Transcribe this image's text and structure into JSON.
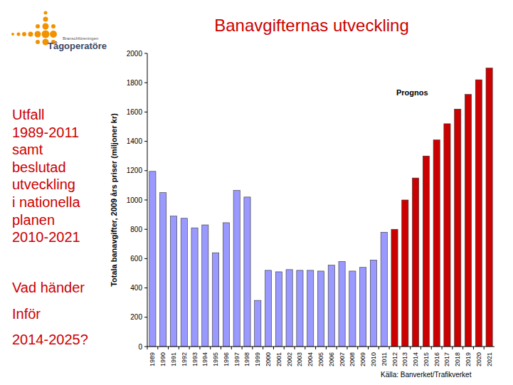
{
  "chart_data": {
    "type": "bar",
    "title": "Banavgifternas utveckling",
    "y_label": "Totala banavgifter, 2009 års priser (miljoner kr)",
    "annotations": [
      "Prognos"
    ],
    "source": "Källa: Banverket/Trafikverket",
    "categories": [
      "1989",
      "1990",
      "1991",
      "1992",
      "1993",
      "1994",
      "1995",
      "1996",
      "1997",
      "1998",
      "1999",
      "2000",
      "2001",
      "2002",
      "2003",
      "2004",
      "2005",
      "2006",
      "2007",
      "2008",
      "2009",
      "2010",
      "2011",
      "2012",
      "2013",
      "2014",
      "2015",
      "2016",
      "2017",
      "2018",
      "2019",
      "2020",
      "2021"
    ],
    "values": [
      1195,
      1050,
      890,
      875,
      810,
      830,
      640,
      845,
      1065,
      1020,
      315,
      520,
      510,
      525,
      520,
      520,
      515,
      555,
      580,
      515,
      540,
      590,
      780,
      800,
      1000,
      1150,
      1300,
      1410,
      1520,
      1620,
      1720,
      1820,
      1900
    ],
    "colors": [
      "#9999ff",
      "#9999ff",
      "#9999ff",
      "#9999ff",
      "#9999ff",
      "#9999ff",
      "#9999ff",
      "#9999ff",
      "#9999ff",
      "#9999ff",
      "#9999ff",
      "#9999ff",
      "#9999ff",
      "#9999ff",
      "#9999ff",
      "#9999ff",
      "#9999ff",
      "#9999ff",
      "#9999ff",
      "#9999ff",
      "#9999ff",
      "#9999ff",
      "#9999ff",
      "#cc0000",
      "#cc0000",
      "#cc0000",
      "#cc0000",
      "#cc0000",
      "#cc0000",
      "#cc0000",
      "#cc0000",
      "#cc0000",
      "#cc0000"
    ],
    "ylim": [
      0,
      2000
    ],
    "yticks": [
      0,
      200,
      400,
      600,
      800,
      1000,
      1200,
      1400,
      1600,
      1800,
      2000
    ],
    "grid": false
  },
  "logo": {
    "line1": "Branschföreningen",
    "line2": "Tågoperatöre"
  },
  "side_text": {
    "block1": [
      "Utfall",
      "1989-2011",
      "samt",
      "beslutad",
      "utveckling",
      "i nationella",
      "planen",
      "2010-2021"
    ],
    "block2": [
      "Vad händer",
      "Inför",
      "2014-2025?"
    ]
  }
}
